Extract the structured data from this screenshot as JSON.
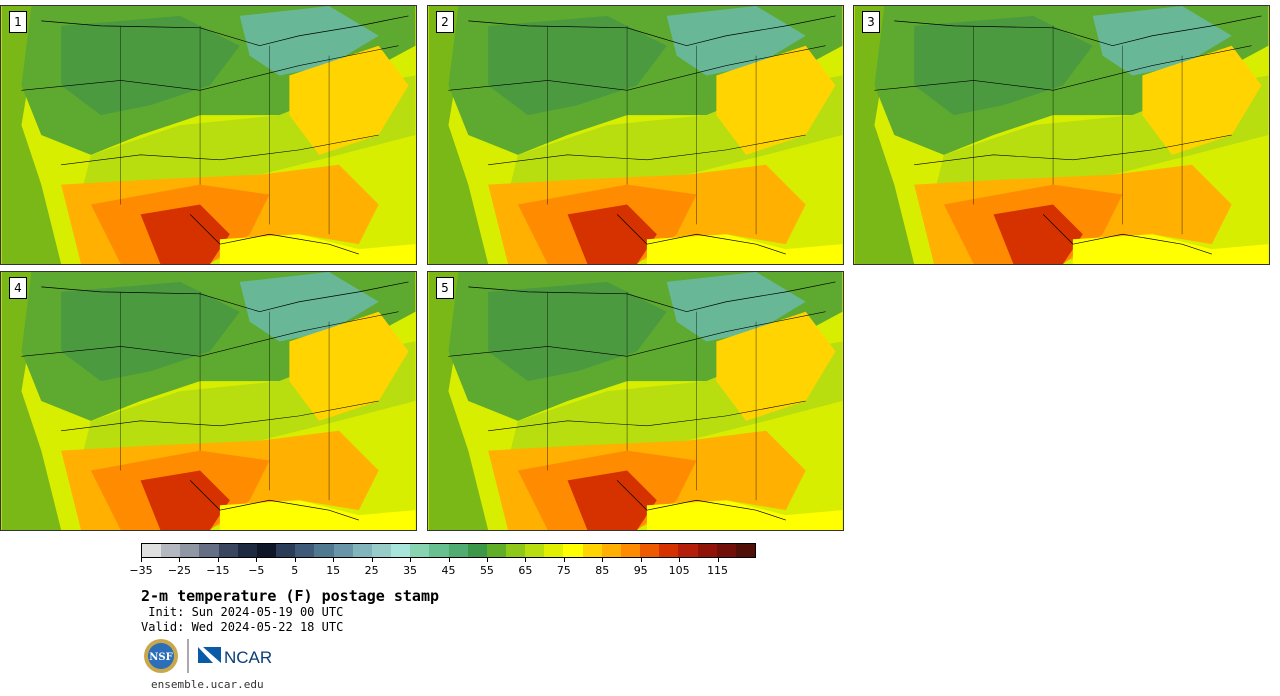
{
  "panels": [
    {
      "label": "1"
    },
    {
      "label": "2"
    },
    {
      "label": "3"
    },
    {
      "label": "4"
    },
    {
      "label": "5"
    }
  ],
  "colorbar": {
    "colors": [
      "#e0e0e0",
      "#b4b8c0",
      "#8f96a4",
      "#646e84",
      "#3a4660",
      "#1e2a40",
      "#0e1628",
      "#2a3c58",
      "#3e5a78",
      "#507890",
      "#6896a8",
      "#82b4bc",
      "#98ccc8",
      "#a8e6dc",
      "#88d4b0",
      "#68c090",
      "#50ac70",
      "#3c9848",
      "#60ae28",
      "#8ec818",
      "#b8de10",
      "#e0f000",
      "#ffff00",
      "#ffd400",
      "#ffb000",
      "#ff8c00",
      "#ee5a00",
      "#d63200",
      "#b41e0a",
      "#901408",
      "#701008",
      "#501008"
    ],
    "tick_labels": [
      "−35",
      "−25",
      "−15",
      "−5",
      "5",
      "15",
      "25",
      "35",
      "45",
      "55",
      "65",
      "75",
      "85",
      "95",
      "105",
      "115"
    ]
  },
  "title": "2-m temperature (F) postage stamp",
  "init": " Init: Sun 2024-05-19 00 UTC",
  "valid": "Valid: Wed 2024-05-22 18 UTC",
  "logos": {
    "nsf": "NSF",
    "ncar": "NCAR"
  },
  "site": "ensemble.ucar.edu"
}
